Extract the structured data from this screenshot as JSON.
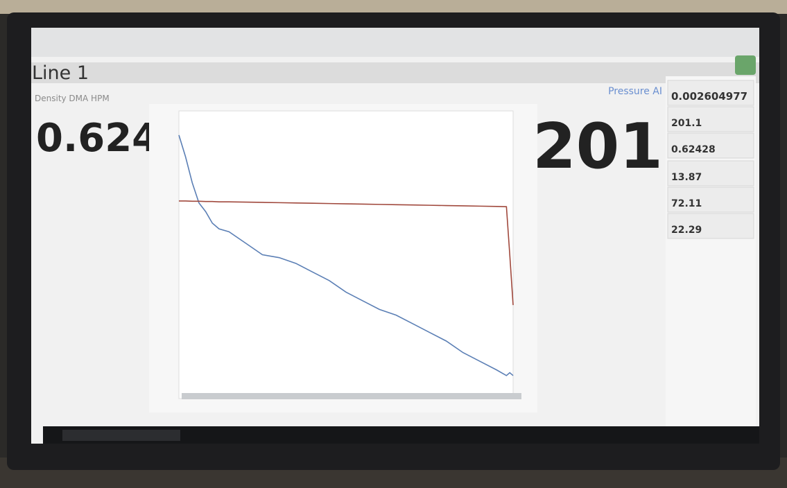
{
  "header": {
    "title": "Line 1"
  },
  "left_panel": {
    "label": "Density DMA HPM",
    "value": "0.624"
  },
  "right_panel": {
    "label": "Pressure AI",
    "value": "201"
  },
  "side_values": [
    "0.002604977",
    "201.1",
    "0.62428",
    "13.87",
    "72.11",
    "22.29"
  ],
  "chart": {
    "type": "line",
    "xlim": [
      0,
      100
    ],
    "ylim": [
      0,
      100
    ],
    "x": [
      0,
      2,
      4,
      6,
      8,
      10,
      12,
      15,
      20,
      25,
      30,
      35,
      40,
      45,
      50,
      55,
      60,
      65,
      70,
      75,
      80,
      85,
      90,
      95,
      98,
      99,
      100
    ],
    "series": [
      {
        "color": "#5b7fb5",
        "values": [
          91.6,
          84,
          75,
          68,
          65,
          61,
          59,
          58,
          54,
          50,
          49,
          47,
          44,
          41,
          37,
          34,
          31,
          29,
          26,
          23,
          20,
          16,
          13,
          10,
          8,
          9,
          8
        ]
      },
      {
        "color": "#a0483c",
        "values": [
          68.7,
          68.7,
          68.6,
          68.6,
          68.5,
          68.5,
          68.4,
          68.4,
          68.3,
          68.2,
          68.1,
          68,
          67.9,
          67.8,
          67.7,
          67.6,
          67.5,
          67.4,
          67.3,
          67.2,
          67.1,
          67,
          66.9,
          66.8,
          66.7,
          50,
          32.5
        ]
      }
    ]
  }
}
